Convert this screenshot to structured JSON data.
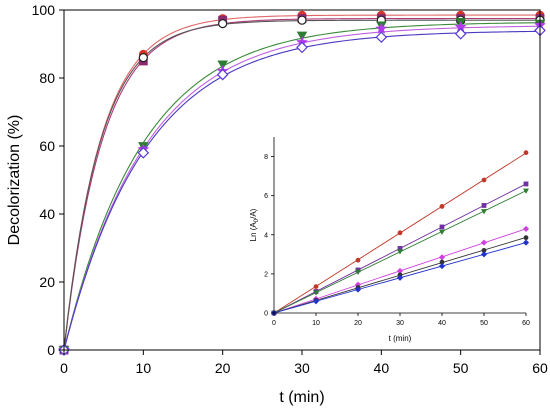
{
  "chart_data": [
    {
      "type": "scatter",
      "xlabel": "t (min)",
      "ylabel": "Decolorization (%)",
      "xlim": [
        0,
        60
      ],
      "ylim": [
        0,
        100
      ],
      "xticks": [
        0,
        10,
        20,
        30,
        40,
        50,
        60
      ],
      "yticks": [
        0,
        20,
        40,
        60,
        80,
        100
      ],
      "grid": false,
      "x": [
        0,
        10,
        20,
        30,
        40,
        50,
        60
      ],
      "series": [
        {
          "marker": "circle",
          "color": "#d9342b",
          "fit_color": "#e06666",
          "values": [
            0,
            87,
            97.5,
            98.5,
            98.5,
            98.5,
            98.5
          ]
        },
        {
          "marker": "square",
          "color": "#8b2a6e",
          "fit_color": "#b03a7a",
          "values": [
            0,
            85,
            97,
            97.5,
            97.5,
            97.5,
            97.5
          ]
        },
        {
          "marker": "circle-open",
          "color": "#222222",
          "fit_color": "#555555",
          "values": [
            0,
            86,
            96,
            97,
            97,
            97,
            97
          ]
        },
        {
          "marker": "triangle-down",
          "color": "#2e7d32",
          "fit_color": "#3a8a3a",
          "values": [
            0,
            60,
            84,
            92.5,
            95.5,
            96.5,
            96
          ]
        },
        {
          "marker": "star",
          "color": "#b23aee",
          "fit_color": "#c060e0",
          "values": [
            0,
            59,
            82,
            90.5,
            94.5,
            95,
            95.5
          ]
        },
        {
          "marker": "diamond-open",
          "color": "#5a3ad6",
          "fit_color": "#4a3ac0",
          "values": [
            0,
            58,
            81,
            89,
            92,
            93,
            94
          ]
        }
      ]
    },
    {
      "type": "line",
      "xlabel": "t (min)",
      "ylabel": "Ln (A₀/A)",
      "ylabel_main": "Ln (A",
      "ylabel_sub": "0",
      "ylabel_rest": "/A)",
      "xlim": [
        0,
        60
      ],
      "ylim": [
        0,
        9
      ],
      "xticks": [
        0,
        10,
        20,
        30,
        40,
        50,
        60
      ],
      "yticks": [
        0,
        2,
        4,
        6,
        8
      ],
      "x": [
        0,
        10,
        20,
        30,
        40,
        50,
        60
      ],
      "series": [
        {
          "marker": "circle",
          "color": "#c0392b",
          "values": [
            0,
            1.35,
            2.7,
            4.1,
            5.45,
            6.8,
            8.2
          ]
        },
        {
          "marker": "square",
          "color": "#7030a0",
          "values": [
            0,
            1.1,
            2.2,
            3.3,
            4.4,
            5.5,
            6.6
          ]
        },
        {
          "marker": "triangle-down",
          "color": "#2e7d32",
          "values": [
            0,
            1.05,
            2.1,
            3.15,
            4.15,
            5.2,
            6.25
          ]
        },
        {
          "marker": "diamond",
          "color": "#d040e0",
          "values": [
            0,
            0.72,
            1.45,
            2.15,
            2.85,
            3.6,
            4.3
          ]
        },
        {
          "marker": "circle",
          "color": "#333333",
          "values": [
            0,
            0.65,
            1.3,
            1.95,
            2.6,
            3.2,
            3.85
          ]
        },
        {
          "marker": "diamond",
          "color": "#2233cc",
          "values": [
            0,
            0.6,
            1.2,
            1.8,
            2.4,
            3.0,
            3.6
          ]
        }
      ]
    }
  ]
}
